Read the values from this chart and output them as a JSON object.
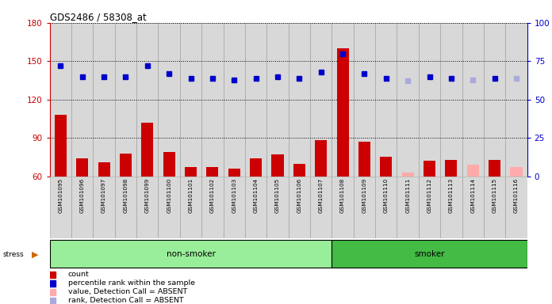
{
  "title": "GDS2486 / 58308_at",
  "samples": [
    "GSM101095",
    "GSM101096",
    "GSM101097",
    "GSM101098",
    "GSM101099",
    "GSM101100",
    "GSM101101",
    "GSM101102",
    "GSM101103",
    "GSM101104",
    "GSM101105",
    "GSM101106",
    "GSM101107",
    "GSM101108",
    "GSM101109",
    "GSM101110",
    "GSM101111",
    "GSM101112",
    "GSM101113",
    "GSM101114",
    "GSM101115",
    "GSM101116"
  ],
  "count_values": [
    108,
    74,
    71,
    78,
    102,
    79,
    67,
    67,
    66,
    74,
    77,
    70,
    88,
    160,
    87,
    75,
    63,
    72,
    73,
    69,
    73,
    67
  ],
  "count_absent": [
    false,
    false,
    false,
    false,
    false,
    false,
    false,
    false,
    false,
    false,
    false,
    false,
    false,
    false,
    false,
    false,
    true,
    false,
    false,
    true,
    false,
    true
  ],
  "rank_values": [
    72,
    65,
    65,
    65,
    72,
    67,
    64,
    64,
    63,
    64,
    65,
    64,
    68,
    80,
    67,
    64,
    62,
    65,
    64,
    63,
    64,
    64
  ],
  "rank_absent": [
    false,
    false,
    false,
    false,
    false,
    false,
    false,
    false,
    false,
    false,
    false,
    false,
    false,
    false,
    false,
    false,
    true,
    false,
    false,
    true,
    false,
    true
  ],
  "non_smoker_count": 13,
  "ylim_left": [
    60,
    180
  ],
  "ylim_right": [
    0,
    100
  ],
  "yticks_left": [
    60,
    90,
    120,
    150,
    180
  ],
  "yticks_right": [
    0,
    25,
    50,
    75,
    100
  ],
  "bar_color": "#cc0000",
  "bar_absent_color": "#ffaaaa",
  "rank_color": "#0000cc",
  "rank_absent_color": "#aaaadd",
  "non_smoker_color": "#99ee99",
  "smoker_color": "#44bb44",
  "stress_arrow_color": "#cc6600",
  "col_bg_color": "#d8d8d8",
  "col_border_color": "#999999",
  "plot_bg": "#ffffff",
  "legend_items": [
    {
      "color": "#cc0000",
      "label": "count"
    },
    {
      "color": "#0000cc",
      "label": "percentile rank within the sample"
    },
    {
      "color": "#ffaaaa",
      "label": "value, Detection Call = ABSENT"
    },
    {
      "color": "#aaaadd",
      "label": "rank, Detection Call = ABSENT"
    }
  ]
}
